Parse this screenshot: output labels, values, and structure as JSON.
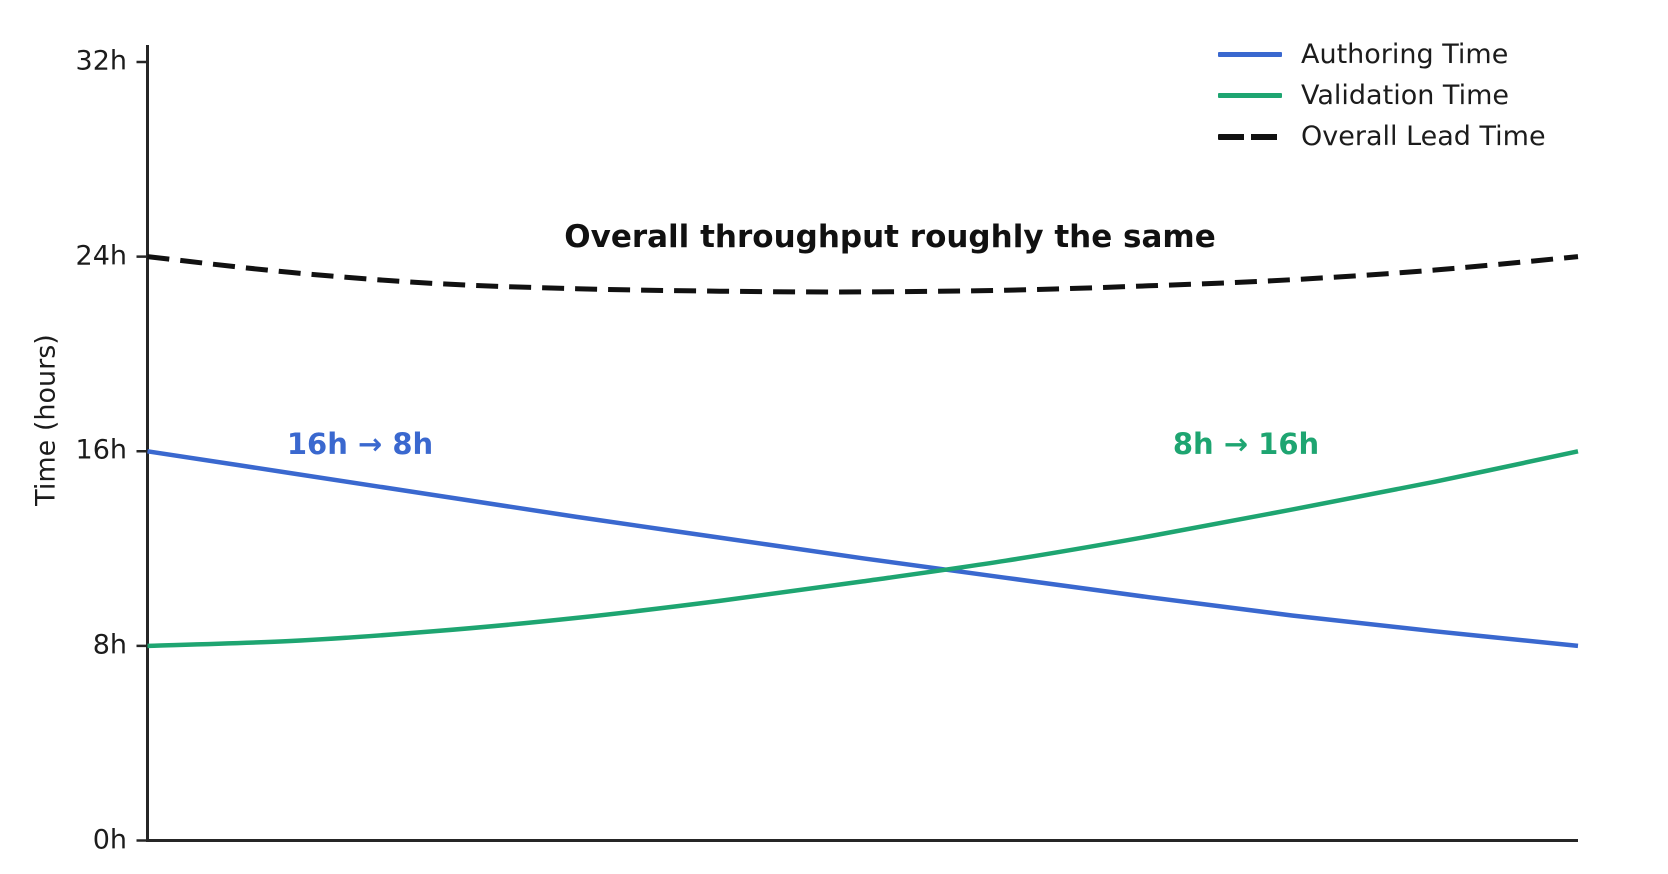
{
  "chart_data": {
    "type": "line",
    "title": "",
    "xlabel": "",
    "ylabel": "Time (hours)",
    "grid": false,
    "legend_position": "upper right",
    "x": [
      0,
      1,
      2,
      3,
      4,
      5,
      6,
      7,
      8,
      9,
      10
    ],
    "x_axis_tick_labels": [],
    "ylim": [
      0,
      34
    ],
    "yticks": {
      "values": [
        0,
        8,
        16,
        24,
        32
      ],
      "labels": [
        "0h",
        "8h",
        "16h",
        "24h",
        "32h"
      ]
    },
    "series": [
      {
        "name": "Authoring Time",
        "style": "solid",
        "color": "#3a68cf",
        "values": [
          16.0,
          15.1,
          14.2,
          13.3,
          12.45,
          11.6,
          10.8,
          10.0,
          9.25,
          8.6,
          8.0
        ],
        "start_label": "16h",
        "end_label": "8h"
      },
      {
        "name": "Validation Time",
        "style": "solid",
        "color": "#1ea571",
        "values": [
          8.0,
          8.2,
          8.6,
          9.15,
          9.85,
          10.65,
          11.5,
          12.5,
          13.6,
          14.75,
          16.0
        ],
        "start_label": "8h",
        "end_label": "16h"
      },
      {
        "name": "Overall Lead Time",
        "style": "dashed",
        "color": "#111111",
        "values": [
          24.0,
          23.35,
          22.9,
          22.68,
          22.58,
          22.55,
          22.62,
          22.8,
          23.05,
          23.45,
          24.0
        ],
        "start_label": "24h",
        "end_label": "24h"
      }
    ]
  },
  "annotations": {
    "throughput": "Overall throughput roughly the same",
    "authoring_change": "16h → 8h",
    "validation_change": "8h → 16h"
  },
  "axis_color": "#262626",
  "background": "#ffffff"
}
